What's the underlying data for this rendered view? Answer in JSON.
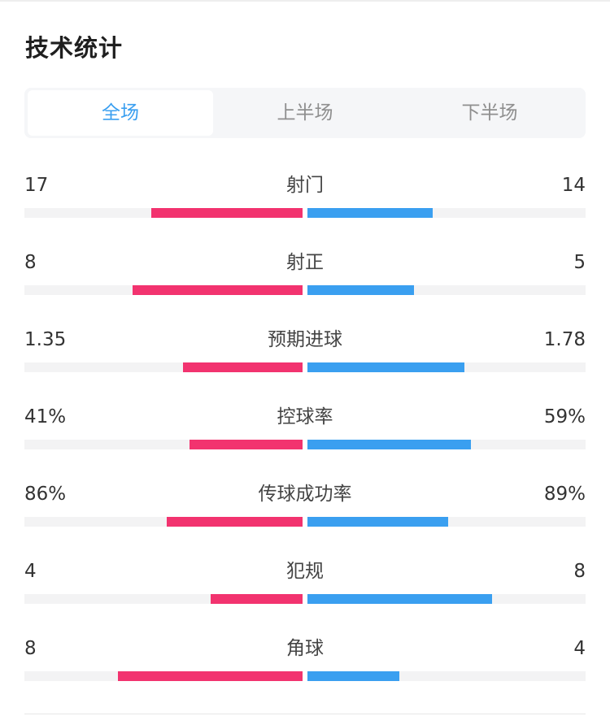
{
  "section_title": "技术统计",
  "tabs": [
    {
      "label": "全场",
      "active": true
    },
    {
      "label": "上半场",
      "active": false
    },
    {
      "label": "下半场",
      "active": false
    }
  ],
  "colors": {
    "home": "#f2336f",
    "away": "#3a9ff0",
    "track": "#f3f3f4",
    "tab_active": "#3a9ff0"
  },
  "stats": [
    {
      "label": "射门",
      "home": "17",
      "away": "14",
      "home_share": 0.548,
      "away_share": 0.452
    },
    {
      "label": "射正",
      "home": "8",
      "away": "5",
      "home_share": 0.615,
      "away_share": 0.385
    },
    {
      "label": "预期进球",
      "home": "1.35",
      "away": "1.78",
      "home_share": 0.431,
      "away_share": 0.569
    },
    {
      "label": "控球率",
      "home": "41%",
      "away": "59%",
      "home_share": 0.41,
      "away_share": 0.59
    },
    {
      "label": "传球成功率",
      "home": "86%",
      "away": "89%",
      "home_share": 0.491,
      "away_share": 0.509
    },
    {
      "label": "犯规",
      "home": "4",
      "away": "8",
      "home_share": 0.333,
      "away_share": 0.667
    },
    {
      "label": "角球",
      "home": "8",
      "away": "4",
      "home_share": 0.667,
      "away_share": 0.333
    }
  ]
}
